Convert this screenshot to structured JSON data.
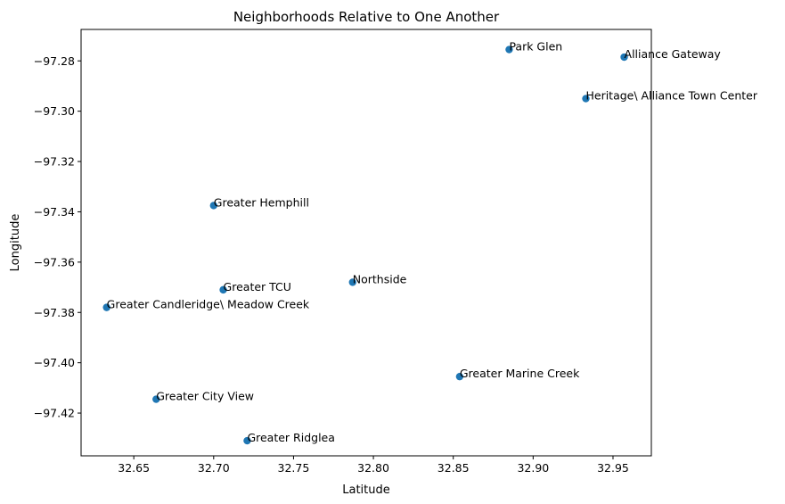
{
  "chart_data": {
    "type": "scatter",
    "title": "Neighborhoods Relative to One Another",
    "xlabel": "Latitude",
    "ylabel": "Longitude",
    "xlim": [
      32.617,
      32.974
    ],
    "ylim": [
      -97.437,
      -97.2675
    ],
    "xticks": [
      32.65,
      32.7,
      32.75,
      32.8,
      32.85,
      32.9,
      32.95
    ],
    "xtick_labels": [
      "32.65",
      "32.70",
      "32.75",
      "32.80",
      "32.85",
      "32.90",
      "32.95"
    ],
    "yticks": [
      -97.28,
      -97.3,
      -97.32,
      -97.34,
      -97.36,
      -97.38,
      -97.4,
      -97.42
    ],
    "ytick_labels": [
      "−97.28",
      "−97.30",
      "−97.32",
      "−97.34",
      "−97.36",
      "−97.38",
      "−97.40",
      "−97.42"
    ],
    "grid": false,
    "marker_color": "#1f77b4",
    "points": [
      {
        "label": "Park Glen",
        "x": 32.885,
        "y": -97.2755
      },
      {
        "label": "Alliance Gateway",
        "x": 32.957,
        "y": -97.2785
      },
      {
        "label": "Heritage\\ Alliance Town Center",
        "x": 32.933,
        "y": -97.295
      },
      {
        "label": "Greater Hemphill",
        "x": 32.7,
        "y": -97.3375
      },
      {
        "label": "Northside",
        "x": 32.787,
        "y": -97.368
      },
      {
        "label": "Greater TCU",
        "x": 32.706,
        "y": -97.371
      },
      {
        "label": "Greater Candleridge\\ Meadow Creek",
        "x": 32.633,
        "y": -97.378
      },
      {
        "label": "Greater Marine Creek",
        "x": 32.854,
        "y": -97.4055
      },
      {
        "label": "Greater City View",
        "x": 32.664,
        "y": -97.4145
      },
      {
        "label": "Greater Ridglea",
        "x": 32.721,
        "y": -97.431
      }
    ]
  }
}
